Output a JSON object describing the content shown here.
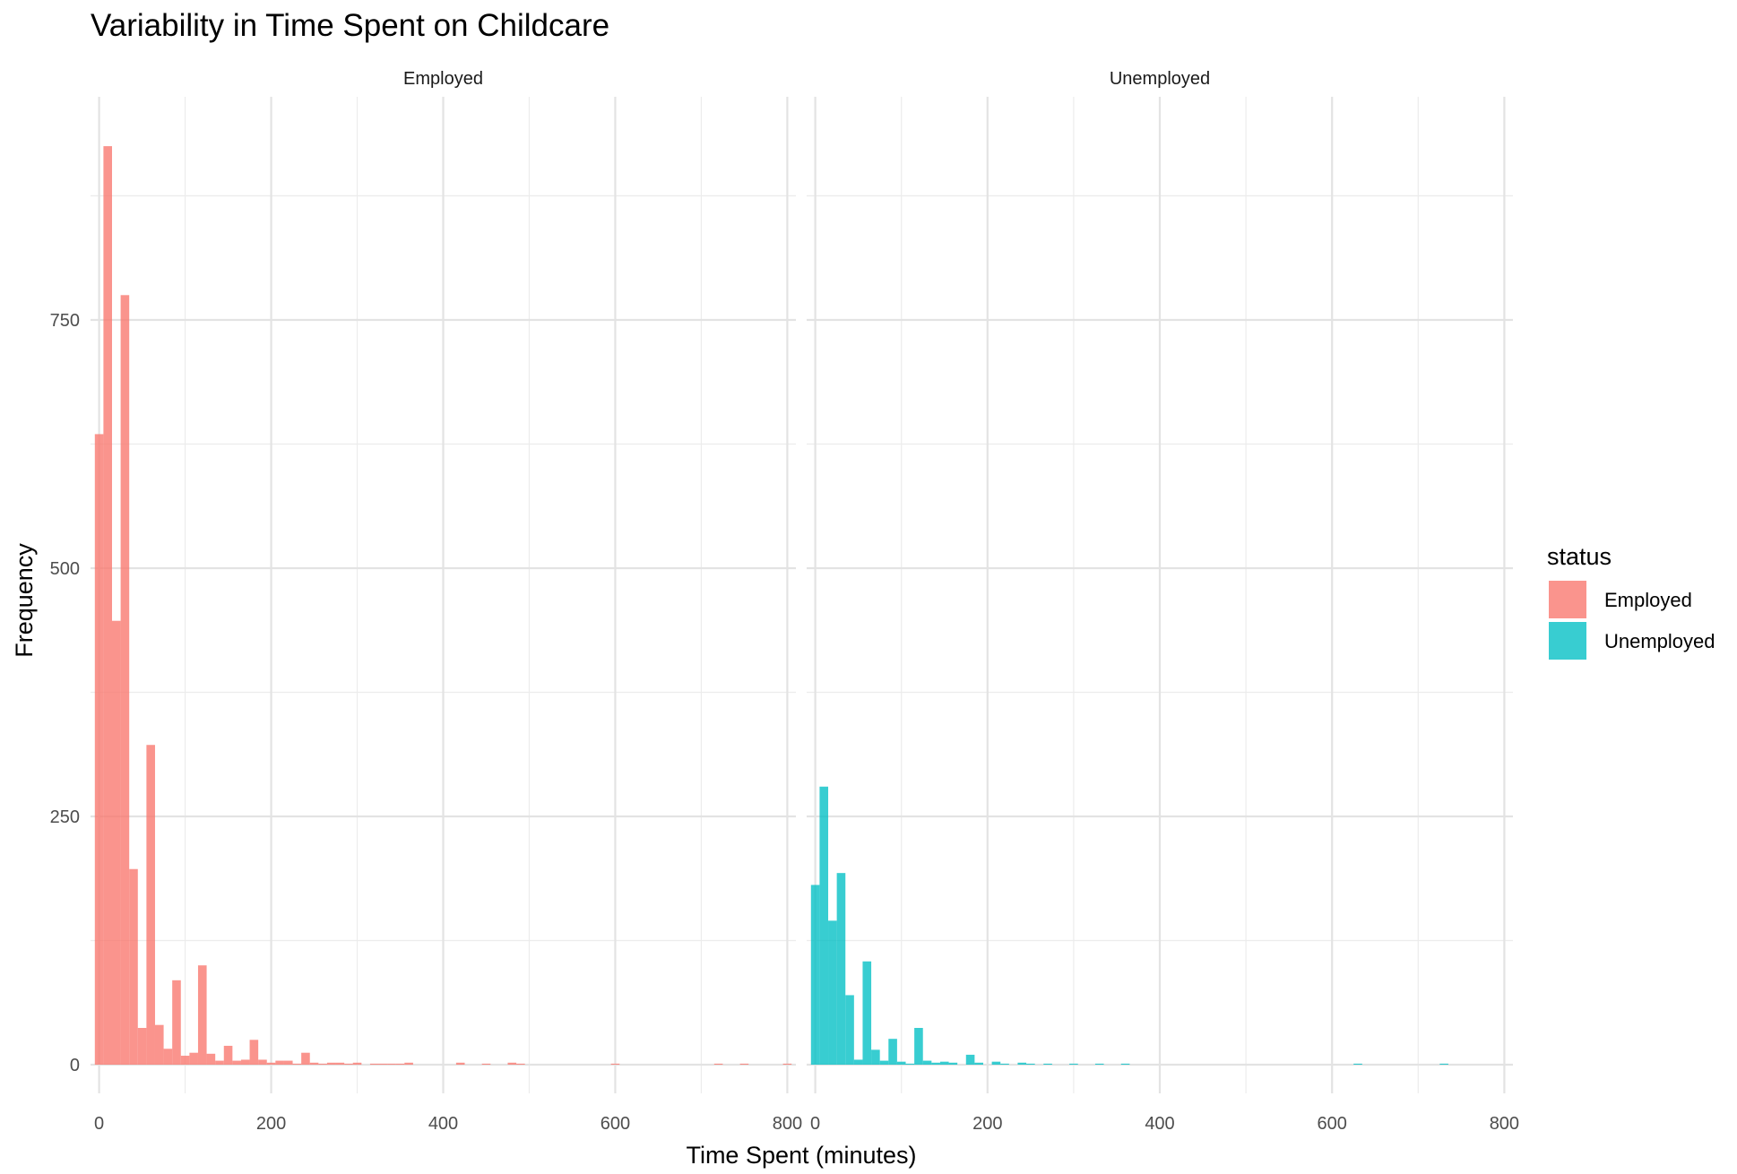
{
  "chart_data": {
    "type": "bar",
    "title": "Variability in Time Spent on Childcare",
    "xlabel": "Time Spent (minutes)",
    "ylabel": "Frequency",
    "xlim": [
      -10,
      810
    ],
    "ylim": [
      0,
      930
    ],
    "x_ticks": [
      0,
      200,
      400,
      600,
      800
    ],
    "y_ticks": [
      0,
      250,
      500,
      750
    ],
    "bin_width": 10,
    "grid": true,
    "legend": {
      "title": "status",
      "placement": "right",
      "entries": [
        {
          "label": "Employed",
          "color": "#F8766D"
        },
        {
          "label": "Unemployed",
          "color": "#00BFC4"
        }
      ]
    },
    "panels": [
      {
        "strip": "Employed",
        "color": "#F8766D",
        "bins": [
          {
            "x": 0,
            "count": 635
          },
          {
            "x": 10,
            "count": 925
          },
          {
            "x": 20,
            "count": 447
          },
          {
            "x": 30,
            "count": 775
          },
          {
            "x": 40,
            "count": 197
          },
          {
            "x": 50,
            "count": 37
          },
          {
            "x": 60,
            "count": 322
          },
          {
            "x": 70,
            "count": 40
          },
          {
            "x": 80,
            "count": 16
          },
          {
            "x": 90,
            "count": 85
          },
          {
            "x": 100,
            "count": 9
          },
          {
            "x": 110,
            "count": 12
          },
          {
            "x": 120,
            "count": 100
          },
          {
            "x": 130,
            "count": 11
          },
          {
            "x": 140,
            "count": 4
          },
          {
            "x": 150,
            "count": 19
          },
          {
            "x": 160,
            "count": 4
          },
          {
            "x": 170,
            "count": 5
          },
          {
            "x": 180,
            "count": 25
          },
          {
            "x": 190,
            "count": 5
          },
          {
            "x": 200,
            "count": 2
          },
          {
            "x": 210,
            "count": 4
          },
          {
            "x": 220,
            "count": 4
          },
          {
            "x": 230,
            "count": 1
          },
          {
            "x": 240,
            "count": 12
          },
          {
            "x": 250,
            "count": 2
          },
          {
            "x": 260,
            "count": 1
          },
          {
            "x": 270,
            "count": 2
          },
          {
            "x": 280,
            "count": 2
          },
          {
            "x": 290,
            "count": 1
          },
          {
            "x": 300,
            "count": 2
          },
          {
            "x": 320,
            "count": 1
          },
          {
            "x": 330,
            "count": 1
          },
          {
            "x": 340,
            "count": 1
          },
          {
            "x": 350,
            "count": 1
          },
          {
            "x": 360,
            "count": 2
          },
          {
            "x": 420,
            "count": 2
          },
          {
            "x": 450,
            "count": 1
          },
          {
            "x": 480,
            "count": 2
          },
          {
            "x": 490,
            "count": 1
          },
          {
            "x": 600,
            "count": 1
          },
          {
            "x": 720,
            "count": 1
          },
          {
            "x": 750,
            "count": 1
          },
          {
            "x": 800,
            "count": 1
          }
        ]
      },
      {
        "strip": "Unemployed",
        "color": "#00BFC4",
        "bins": [
          {
            "x": 0,
            "count": 181
          },
          {
            "x": 10,
            "count": 280
          },
          {
            "x": 20,
            "count": 145
          },
          {
            "x": 30,
            "count": 193
          },
          {
            "x": 40,
            "count": 70
          },
          {
            "x": 50,
            "count": 5
          },
          {
            "x": 60,
            "count": 104
          },
          {
            "x": 70,
            "count": 15
          },
          {
            "x": 80,
            "count": 4
          },
          {
            "x": 90,
            "count": 26
          },
          {
            "x": 100,
            "count": 3
          },
          {
            "x": 110,
            "count": 1
          },
          {
            "x": 120,
            "count": 37
          },
          {
            "x": 130,
            "count": 4
          },
          {
            "x": 140,
            "count": 2
          },
          {
            "x": 150,
            "count": 3
          },
          {
            "x": 160,
            "count": 2
          },
          {
            "x": 180,
            "count": 10
          },
          {
            "x": 190,
            "count": 2
          },
          {
            "x": 210,
            "count": 3
          },
          {
            "x": 220,
            "count": 1
          },
          {
            "x": 240,
            "count": 2
          },
          {
            "x": 250,
            "count": 1
          },
          {
            "x": 270,
            "count": 1
          },
          {
            "x": 300,
            "count": 1
          },
          {
            "x": 330,
            "count": 1
          },
          {
            "x": 360,
            "count": 1
          },
          {
            "x": 630,
            "count": 1
          },
          {
            "x": 730,
            "count": 1
          }
        ]
      }
    ]
  }
}
